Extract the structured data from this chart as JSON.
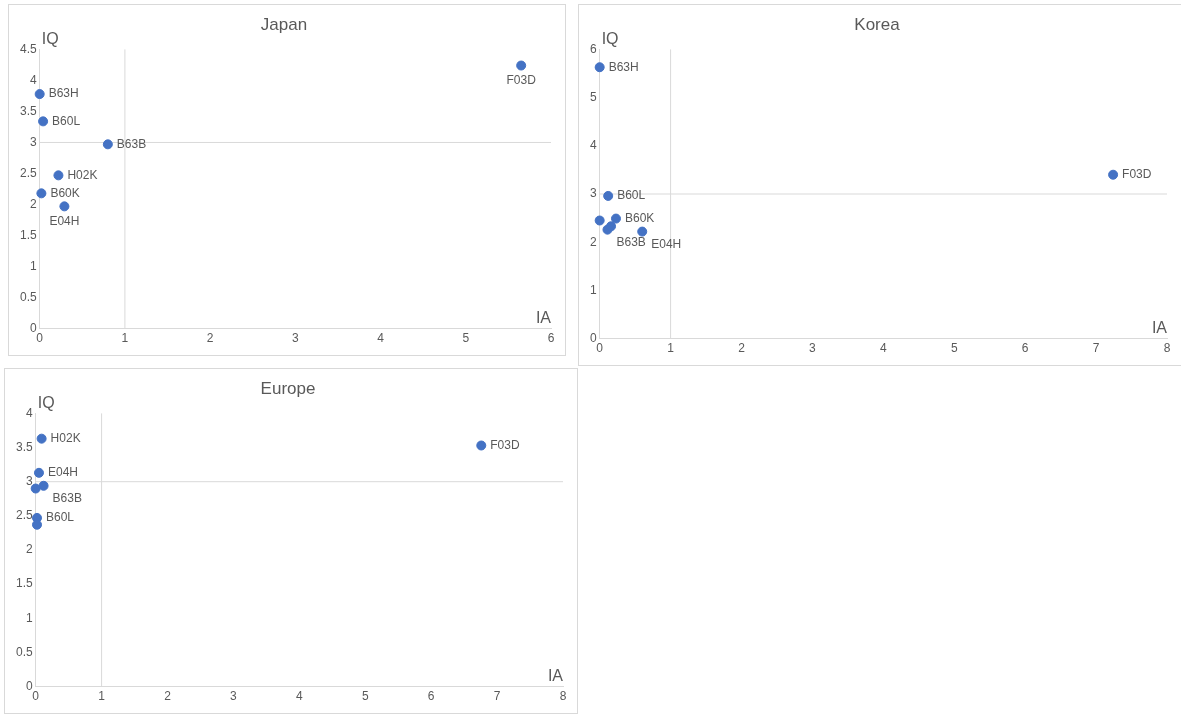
{
  "chart_data": [
    {
      "type": "scatter",
      "title": "Japan",
      "xlabel": "IA",
      "ylabel": "IQ",
      "xlim": [
        0,
        6
      ],
      "xticks": [
        0,
        1,
        2,
        3,
        4,
        5,
        6
      ],
      "ylim": [
        0,
        4.5
      ],
      "yticks": [
        0,
        0.5,
        1,
        1.5,
        2,
        2.5,
        3,
        3.5,
        4,
        4.5
      ],
      "grid": false,
      "legend": false,
      "marker": "circle",
      "series": [
        {
          "color": "#4472c4",
          "x": [
            0,
            0.04,
            0.8,
            0.22,
            0.02,
            0.29,
            5.65
          ],
          "values": [
            3.78,
            3.34,
            2.97,
            2.47,
            2.18,
            1.97,
            4.24
          ]
        }
      ],
      "ref_lines": [
        {
          "axis": "x",
          "value": 1,
          "color": "#d9d9d9"
        },
        {
          "axis": "y",
          "value": 3,
          "color": "#d9d9d9"
        }
      ],
      "annotations": [
        {
          "text": "B63H",
          "x": 0,
          "y": 3.78
        },
        {
          "text": "B60L",
          "x": 0.04,
          "y": 3.34
        },
        {
          "text": "B63B",
          "x": 0.8,
          "y": 2.97
        },
        {
          "text": "H02K",
          "x": 0.22,
          "y": 2.47
        },
        {
          "text": "B60K",
          "x": 0.02,
          "y": 2.18
        },
        {
          "text": "E04H",
          "x": 0.29,
          "y": 1.97
        },
        {
          "text": "F03D",
          "x": 5.65,
          "y": 4.24
        }
      ]
    },
    {
      "type": "scatter",
      "title": "Korea",
      "xlabel": "IA",
      "ylabel": "IQ",
      "xlim": [
        0,
        8
      ],
      "xticks": [
        0,
        1,
        2,
        3,
        4,
        5,
        6,
        7,
        8
      ],
      "ylim": [
        0,
        6
      ],
      "yticks": [
        0,
        1,
        2,
        3,
        4,
        5,
        6
      ],
      "grid": false,
      "legend": false,
      "marker": "circle",
      "series": [
        {
          "color": "#4472c4",
          "x": [
            0,
            0.12,
            0.23,
            0,
            0.11,
            0.16,
            0.6,
            7.24
          ],
          "values": [
            5.63,
            2.96,
            2.49,
            2.45,
            2.26,
            2.33,
            2.22,
            3.4
          ]
        }
      ],
      "ref_lines": [
        {
          "axis": "x",
          "value": 1,
          "color": "#d9d9d9"
        },
        {
          "axis": "y",
          "value": 3,
          "color": "#d9d9d9"
        }
      ],
      "annotations": [
        {
          "text": "B63H",
          "x": 0,
          "y": 5.63
        },
        {
          "text": "B60L",
          "x": 0.12,
          "y": 2.96
        },
        {
          "text": "B60K",
          "x": 0.23,
          "y": 2.49
        },
        {
          "text": "B63B",
          "x": 0.11,
          "y": 2.26
        },
        {
          "text": "E04H",
          "x": 0.6,
          "y": 2.22
        },
        {
          "text": "F03D",
          "x": 7.24,
          "y": 3.4
        }
      ]
    },
    {
      "type": "scatter",
      "title": "Europe",
      "xlabel": "IA",
      "ylabel": "IQ",
      "xlim": [
        0,
        8
      ],
      "xticks": [
        0,
        1,
        2,
        3,
        4,
        5,
        6,
        7,
        8
      ],
      "ylim": [
        0,
        4
      ],
      "yticks": [
        0,
        0.5,
        1,
        1.5,
        2,
        2.5,
        3,
        3.5,
        4
      ],
      "grid": false,
      "legend": false,
      "marker": "circle",
      "series": [
        {
          "color": "#4472c4",
          "x": [
            0.09,
            0.05,
            0.12,
            0,
            0.02,
            0.02,
            6.76
          ],
          "values": [
            3.63,
            3.13,
            2.94,
            2.9,
            2.47,
            2.37,
            3.53
          ]
        }
      ],
      "ref_lines": [
        {
          "axis": "x",
          "value": 1,
          "color": "#d9d9d9"
        },
        {
          "axis": "y",
          "value": 3,
          "color": "#d9d9d9"
        }
      ],
      "annotations": [
        {
          "text": "H02K",
          "x": 0.09,
          "y": 3.63
        },
        {
          "text": "E04H",
          "x": 0.05,
          "y": 3.13
        },
        {
          "text": "B63B",
          "x": 0.12,
          "y": 2.94
        },
        {
          "text": "B60L",
          "x": 0.02,
          "y": 2.47
        },
        {
          "text": "F03D",
          "x": 6.76,
          "y": 3.53
        }
      ]
    }
  ]
}
